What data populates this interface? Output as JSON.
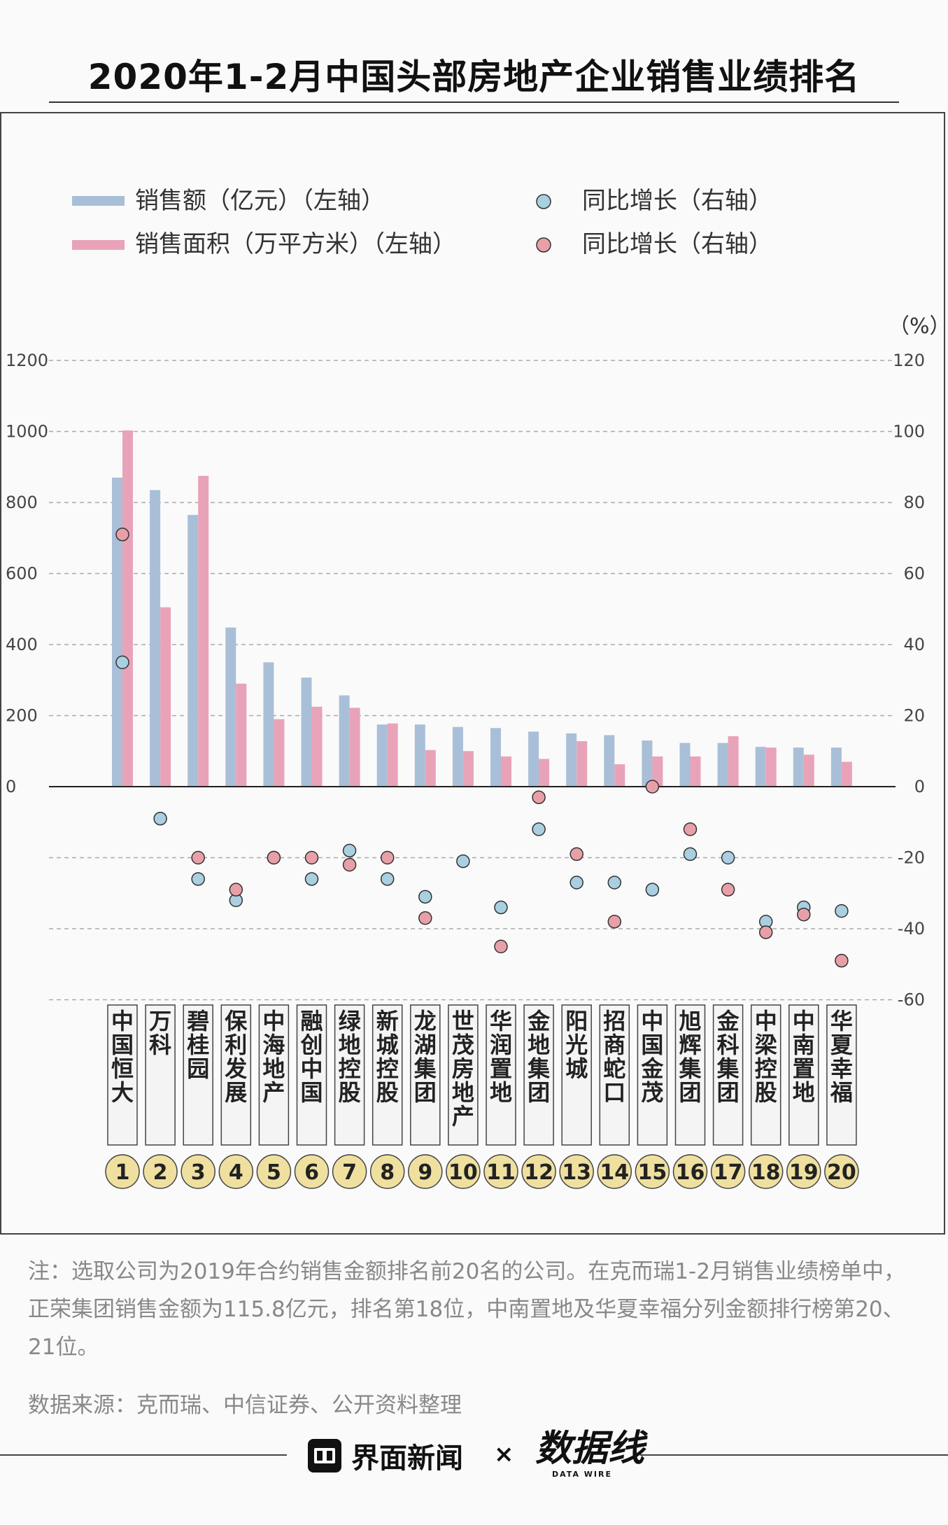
{
  "title": "2020年1-2月中国头部房地产企业销售业绩排名",
  "legend": {
    "sales_amount": "销售额（亿元）（左轴）",
    "sales_area": "销售面积（万平方米）（左轴）",
    "yoy_amount": "同比增长（右轴）",
    "yoy_area": "同比增长（右轴）"
  },
  "right_axis_unit": "（%）",
  "colors": {
    "amount": "#a9bfd8",
    "area": "#e8a3b8",
    "yoy_amount": "#a9cfe0",
    "yoy_area": "#e8a0a8",
    "rank_badge": "#efe0a0"
  },
  "chart_data": {
    "type": "bar",
    "categories": [
      "中国恒大",
      "万科",
      "碧桂园",
      "保利发展",
      "中海地产",
      "融创中国",
      "绿地控股",
      "新城控股",
      "龙湖集团",
      "世茂房地产",
      "华润置地",
      "金地集团",
      "阳光城",
      "招商蛇口",
      "中国金茂",
      "旭辉集团",
      "金科集团",
      "中梁控股",
      "中南置地",
      "华夏幸福"
    ],
    "ranks": [
      "1",
      "2",
      "3",
      "4",
      "5",
      "6",
      "7",
      "8",
      "9",
      "10",
      "11",
      "12",
      "13",
      "14",
      "15",
      "16",
      "17",
      "18",
      "19",
      "20"
    ],
    "left_axis": {
      "ticks": [
        "1200",
        "1000",
        "800",
        "600",
        "400",
        "200",
        "0"
      ],
      "ylim": [
        -600,
        1200
      ]
    },
    "right_axis": {
      "ticks": [
        "120",
        "100",
        "80",
        "60",
        "40",
        "20",
        "0",
        "-20",
        "-40",
        "-60"
      ],
      "ylim": [
        -60,
        120
      ]
    },
    "series": [
      {
        "name": "销售额（亿元）（左轴）",
        "axis": "left",
        "kind": "bar",
        "values": [
          870,
          835,
          765,
          448,
          350,
          307,
          257,
          175,
          175,
          168,
          165,
          155,
          150,
          145,
          130,
          123,
          123,
          112,
          110,
          110
        ]
      },
      {
        "name": "销售面积（万平方米）（左轴）",
        "axis": "left",
        "kind": "bar",
        "values": [
          1003,
          505,
          875,
          290,
          190,
          225,
          222,
          178,
          103,
          100,
          85,
          78,
          128,
          63,
          85,
          85,
          142,
          110,
          90,
          70
        ]
      },
      {
        "name": "同比增长（右轴）",
        "axis": "right",
        "kind": "scatter",
        "values": [
          35,
          -9,
          -26,
          -32,
          -20,
          -26,
          -18,
          -26,
          -31,
          -21,
          -34,
          -12,
          -27,
          -27,
          -29,
          -19,
          -20,
          -38,
          -34,
          -35
        ]
      },
      {
        "name": "同比增长（右轴）",
        "axis": "right",
        "kind": "scatter",
        "values": [
          71,
          null,
          -20,
          -29,
          -20,
          -20,
          -22,
          -20,
          -37,
          null,
          -45,
          -3,
          -19,
          -38,
          0,
          -12,
          -29,
          -41,
          -36,
          -49
        ]
      }
    ]
  },
  "note": "注：选取公司为2019年合约销售金额排名前20名的公司。在克而瑞1-2月销售业绩榜单中，正荣集团销售金额为115.8亿元，排名第18位，中南置地及华夏幸福分列金额排行榜第20、21位。",
  "source": "数据来源：克而瑞、中信证券、公开资料整理",
  "footer": {
    "brand": "界面新闻",
    "times": "×",
    "logo_cn": "数据线",
    "logo_en": "DATA WIRE"
  }
}
